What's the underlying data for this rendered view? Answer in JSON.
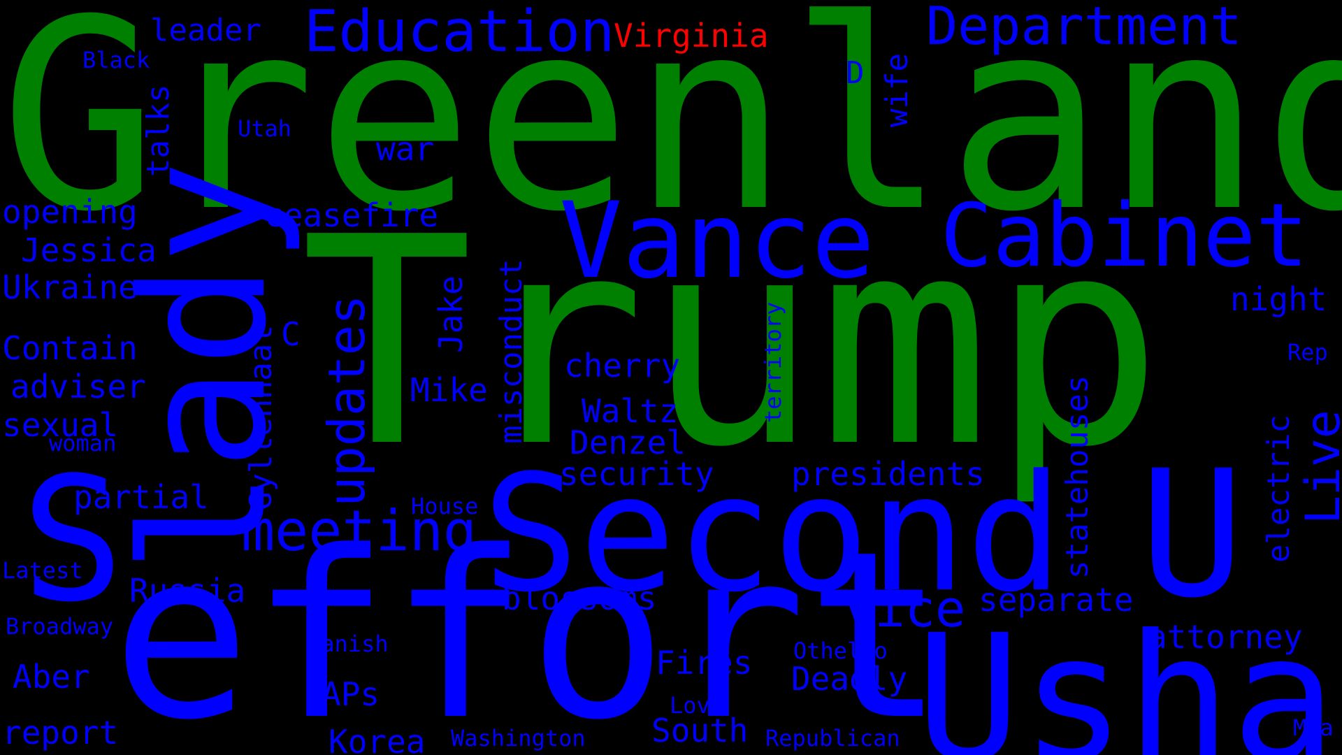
{
  "colors": {
    "background": "#000000",
    "primary_word": "#008000",
    "secondary_word": "#0000ff",
    "highlight_word": "#ff0000"
  },
  "words": {
    "greenland": "Greenland",
    "trump": "Trump",
    "effort": "effort",
    "usha": "Usha",
    "second": "Second",
    "lady": "lady",
    "s": "S",
    "u": "U",
    "vance": "Vance",
    "cabinet": "Cabinet",
    "education": "Education",
    "department": "Department",
    "virginia": "Virginia",
    "updates": "updates",
    "meeting": "meeting",
    "vice": "vice",
    "live": "Live",
    "leader": "leader",
    "black": "Black",
    "talks": "talks",
    "utah": "Utah",
    "war": "war",
    "d": "D",
    "wife": "wife",
    "opening": "opening",
    "ceasefire": "ceasefire",
    "jessica": "Jessica",
    "ukraine": "Ukraine",
    "contain": "Contain",
    "adviser": "adviser",
    "sexual": "sexual",
    "woman": "woman",
    "gyllenhaal": "Gyllenhaal",
    "c": "C",
    "jake": "Jake",
    "misconduct": "misconduct",
    "mike": "Mike",
    "cherry": "cherry",
    "waltz": "Waltz",
    "denzel": "Denzel",
    "territory": "territory",
    "night": "night",
    "rep": "Rep",
    "statehouses": "statehouses",
    "electric": "electric",
    "security": "security",
    "presidents": "presidents",
    "partial": "partial",
    "house": "House",
    "latest": "Latest",
    "russia": "Russia",
    "blossoms": "blossoms",
    "separate": "separate",
    "broadway": "Broadway",
    "danish": "Danish",
    "othello": "Othello",
    "attorney": "attorney",
    "aber": "Aber",
    "fires": "Fires",
    "deadly": "Deadly",
    "aps": "APs",
    "love": "Love",
    "report": "report",
    "south": "South",
    "korea": "Korea",
    "washington": "Washington",
    "republican": "Republican",
    "mia": "Mia"
  }
}
